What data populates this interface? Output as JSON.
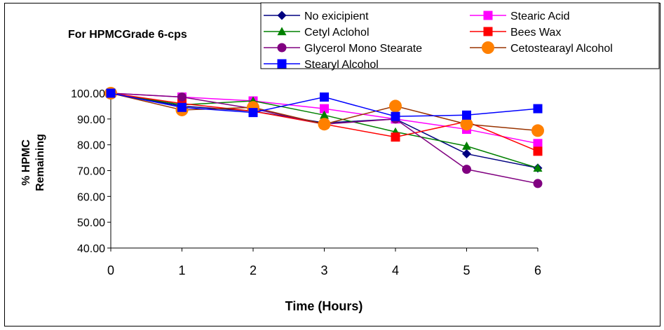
{
  "chart_data": {
    "type": "line",
    "title": "For HPMCGrade 6-cps",
    "xlabel": "Time (Hours)",
    "ylabel_line1": "% HPMC",
    "ylabel_line2": "Remaining",
    "x": [
      0,
      1,
      2,
      3,
      4,
      5,
      6
    ],
    "x_ticks": [
      "0",
      "1",
      "2",
      "3",
      "4",
      "5",
      "6"
    ],
    "y_ticks": [
      "40.00",
      "50.00",
      "60.00",
      "70.00",
      "80.00",
      "90.00",
      "100.00"
    ],
    "xlim": [
      0,
      6
    ],
    "ylim": [
      40,
      100
    ],
    "grid": false,
    "legend_position": "top-right",
    "series": [
      {
        "name": "No exicipient",
        "color": "#000080",
        "marker": "diamond",
        "values": [
          100,
          95,
          93,
          88.5,
          90,
          76.5,
          71
        ]
      },
      {
        "name": "Stearic Acid",
        "color": "#ff00ff",
        "marker": "square",
        "values": [
          100,
          98.5,
          97,
          94,
          90,
          86,
          80.5
        ]
      },
      {
        "name": "Cetyl Aclohol",
        "color": "#008000",
        "marker": "triangle",
        "values": [
          100,
          95.5,
          97,
          91.5,
          85,
          79.5,
          71
        ]
      },
      {
        "name": "Bees Wax",
        "color": "#ff0000",
        "marker": "square",
        "values": [
          100,
          96,
          93,
          88,
          83,
          89,
          77.5
        ]
      },
      {
        "name": "Glycerol Mono Stearate",
        "color": "#800080",
        "marker": "circle",
        "values": [
          100,
          98.5,
          94,
          88,
          90,
          70.5,
          65
        ]
      },
      {
        "name": "Cetostearayl Alcohol",
        "color": "#993300",
        "marker": "circle",
        "values": [
          100,
          93.5,
          94.5,
          88,
          95,
          88,
          85.5
        ]
      },
      {
        "name": "Stearyl Alcohol",
        "color": "#0000ff",
        "marker": "square",
        "values": [
          100,
          94.5,
          92.5,
          98.5,
          91,
          91.5,
          94
        ]
      }
    ],
    "marker_fill_overrides": {
      "Cetostearayl Alcohol": "#ff8000"
    }
  }
}
